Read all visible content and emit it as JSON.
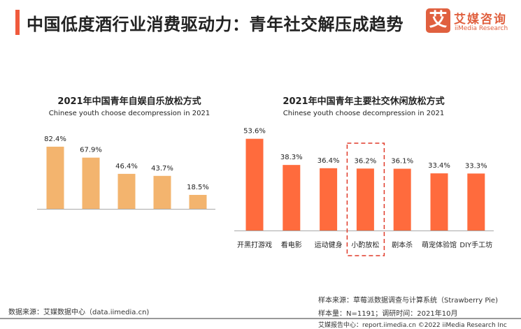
{
  "header": {
    "title": "中国低度酒行业消费驱动力：青年社交解压成趋势",
    "logo_mark": "艾",
    "logo_cn": "艾媒咨询",
    "logo_en": "iiMedia Research",
    "accent_color": "#f05a3c"
  },
  "chart_data": [
    {
      "type": "bar",
      "title": "2021年中国青年自娱自乐放松方式",
      "subtitle": "Chinese youth choose decompression in 2021",
      "categories": [
        "",
        "",
        "",
        "",
        ""
      ],
      "values": [
        82.4,
        67.9,
        46.4,
        43.7,
        18.5
      ],
      "labels": [
        "82.4%",
        "67.9%",
        "46.4%",
        "43.7%",
        "18.5%"
      ],
      "color": "#f3b46e",
      "ylim": [
        0,
        100
      ],
      "grid": false
    },
    {
      "type": "bar",
      "title": "2021年中国青年主要社交休闲放松方式",
      "subtitle": "Chinese youth choose decompression in 2021",
      "categories": [
        "开黑打游戏",
        "看电影",
        "运动健身",
        "小酌放松",
        "剧本杀",
        "萌宠体验馆",
        "DIY手工坊"
      ],
      "values": [
        53.6,
        38.3,
        36.4,
        36.2,
        36.1,
        33.4,
        33.3
      ],
      "labels": [
        "53.6%",
        "38.3%",
        "36.4%",
        "36.2%",
        "36.1%",
        "33.4%",
        "33.3%"
      ],
      "color": "#ff6b3d",
      "highlight": "小酌放松",
      "highlight_color": "#e03a2a",
      "ylim": [
        0,
        60
      ],
      "grid": false
    }
  ],
  "footer": {
    "source": "数据来源：艾媒数据中心（data.iimedia.cn)",
    "sample_source": "样本来源：草莓派数据调查与计算系统（Strawberry Pie)",
    "sample_size": "样本量：N=1191；调研时间：2021年10月",
    "report": "艾媒报告中心：report.iimedia.cn ©2022 iiMedia Research Inc"
  }
}
